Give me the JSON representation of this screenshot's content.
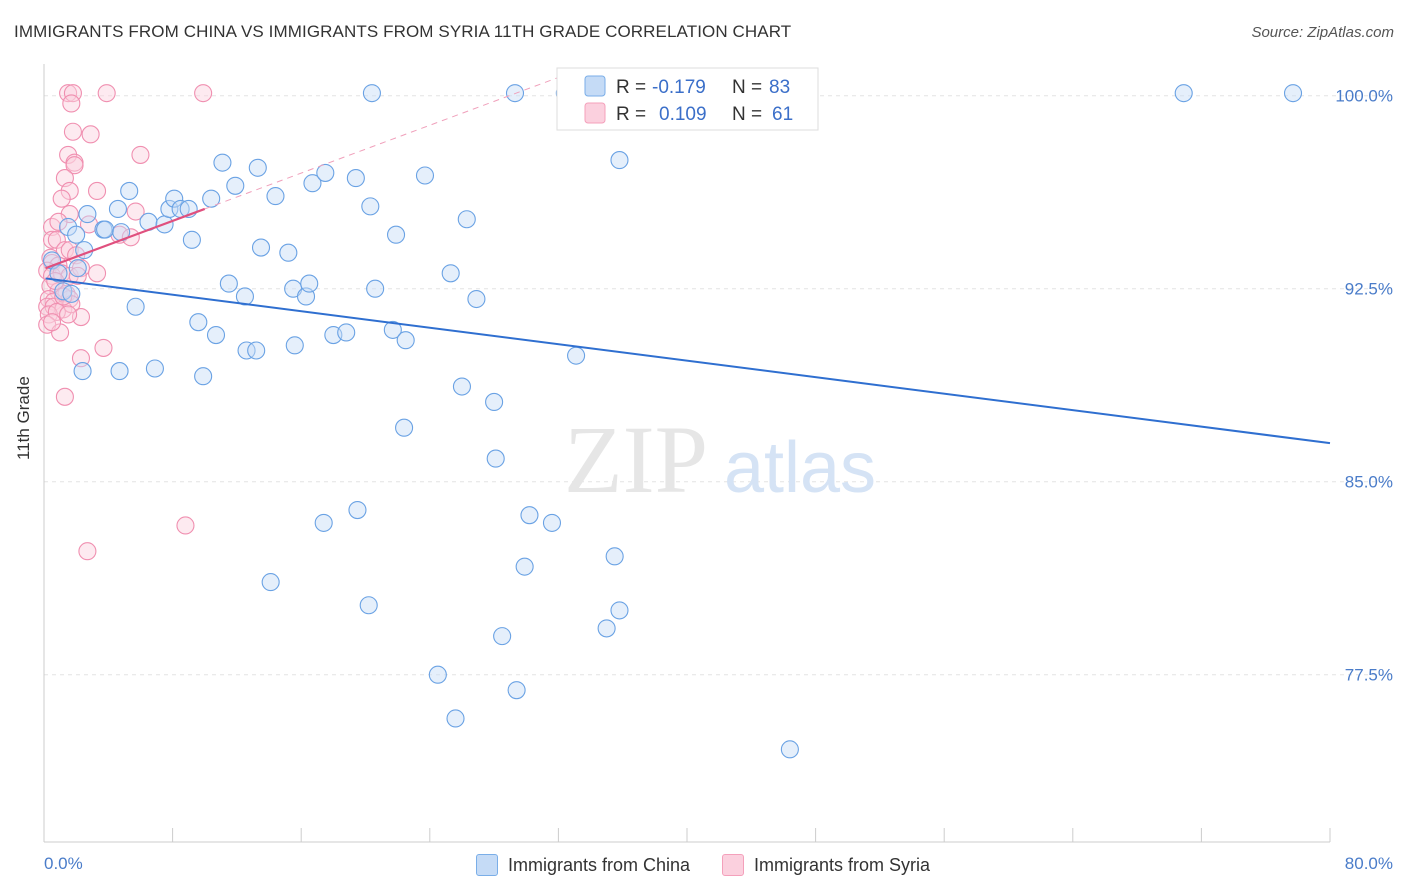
{
  "title": "IMMIGRANTS FROM CHINA VS IMMIGRANTS FROM SYRIA 11TH GRADE CORRELATION CHART",
  "source": "Source: ZipAtlas.com",
  "watermark": {
    "zip": "ZIP",
    "atlas": "atlas"
  },
  "colors": {
    "china": "#7aaee8",
    "china_line": "#2f6fd0",
    "syria": "#f4a0bb",
    "syria_line": "#e0507e",
    "tick_label": "#4a7cc9"
  },
  "legend_box": {
    "rows": [
      {
        "r_label": "R =",
        "r_value": "-0.179",
        "n_label": "N =",
        "n_value": "83"
      },
      {
        "r_label": "R =",
        "r_value": "0.109",
        "n_label": "N =",
        "n_value": "61"
      }
    ]
  },
  "chart_data": {
    "type": "scatter",
    "title": "IMMIGRANTS FROM CHINA VS IMMIGRANTS FROM SYRIA 11TH GRADE CORRELATION CHART",
    "xlabel": "",
    "ylabel": "11th Grade",
    "xlim": [
      0,
      80
    ],
    "ylim": [
      71.0,
      101.0
    ],
    "x_tick_labels": [
      "0.0%",
      "80.0%"
    ],
    "y_ticks": [
      77.5,
      85.0,
      92.5,
      100.0
    ],
    "y_tick_labels": [
      "77.5%",
      "85.0%",
      "92.5%",
      "100.0%"
    ],
    "grid": true,
    "legend_position": "top-center",
    "series": [
      {
        "name": "Immigrants from China",
        "color": "#7aaee8",
        "r": -0.179,
        "n": 83,
        "trend": {
          "x": [
            0.1,
            80
          ],
          "y": [
            92.9,
            86.5
          ]
        },
        "points": [
          [
            0.5,
            93.6
          ],
          [
            0.9,
            93.1
          ],
          [
            1.2,
            92.4
          ],
          [
            1.5,
            94.9
          ],
          [
            2.0,
            94.6
          ],
          [
            2.5,
            94.0
          ],
          [
            2.7,
            95.4
          ],
          [
            3.7,
            94.8
          ],
          [
            3.8,
            94.8
          ],
          [
            4.6,
            95.6
          ],
          [
            4.8,
            94.7
          ],
          [
            5.3,
            96.3
          ],
          [
            6.5,
            95.1
          ],
          [
            7.5,
            95.0
          ],
          [
            7.8,
            95.6
          ],
          [
            8.1,
            96.0
          ],
          [
            8.5,
            95.6
          ],
          [
            9.0,
            95.6
          ],
          [
            10.4,
            96.0
          ],
          [
            11.1,
            97.4
          ],
          [
            11.9,
            96.5
          ],
          [
            13.3,
            97.2
          ],
          [
            14.4,
            96.1
          ],
          [
            16.7,
            96.6
          ],
          [
            17.5,
            97.0
          ],
          [
            19.4,
            96.8
          ],
          [
            20.3,
            95.7
          ],
          [
            21.9,
            94.6
          ],
          [
            23.7,
            96.9
          ],
          [
            26.3,
            95.2
          ],
          [
            9.2,
            94.4
          ],
          [
            13.5,
            94.1
          ],
          [
            15.2,
            93.9
          ],
          [
            11.5,
            92.7
          ],
          [
            12.5,
            92.2
          ],
          [
            15.5,
            92.5
          ],
          [
            16.3,
            92.2
          ],
          [
            16.5,
            92.7
          ],
          [
            20.6,
            92.5
          ],
          [
            25.3,
            93.1
          ],
          [
            26.9,
            92.1
          ],
          [
            2.4,
            89.3
          ],
          [
            5.7,
            91.8
          ],
          [
            9.6,
            91.2
          ],
          [
            10.7,
            90.7
          ],
          [
            12.6,
            90.1
          ],
          [
            13.2,
            90.1
          ],
          [
            15.6,
            90.3
          ],
          [
            18.0,
            90.7
          ],
          [
            18.8,
            90.8
          ],
          [
            21.7,
            90.9
          ],
          [
            22.5,
            90.5
          ],
          [
            33.1,
            89.9
          ],
          [
            4.7,
            89.3
          ],
          [
            6.9,
            89.4
          ],
          [
            9.9,
            89.1
          ],
          [
            26.0,
            88.7
          ],
          [
            28.0,
            88.1
          ],
          [
            22.4,
            87.1
          ],
          [
            28.1,
            85.9
          ],
          [
            17.4,
            83.4
          ],
          [
            19.5,
            83.9
          ],
          [
            30.2,
            83.7
          ],
          [
            31.6,
            83.4
          ],
          [
            35.5,
            82.1
          ],
          [
            29.9,
            81.7
          ],
          [
            14.1,
            81.1
          ],
          [
            20.2,
            80.2
          ],
          [
            28.5,
            79.0
          ],
          [
            35.8,
            80.0
          ],
          [
            35.0,
            79.3
          ],
          [
            24.5,
            77.5
          ],
          [
            29.4,
            76.9
          ],
          [
            25.6,
            75.8
          ],
          [
            46.4,
            74.6
          ],
          [
            20.4,
            100.1
          ],
          [
            29.3,
            100.1
          ],
          [
            32.4,
            100.1
          ],
          [
            70.9,
            100.1
          ],
          [
            77.7,
            100.1
          ],
          [
            35.8,
            97.5
          ],
          [
            2.1,
            93.3
          ],
          [
            1.7,
            92.3
          ]
        ]
      },
      {
        "name": "Immigrants from Syria",
        "color": "#f4a0bb",
        "r": 0.109,
        "n": 61,
        "trend": {
          "x": [
            0.1,
            10
          ],
          "y": [
            93.3,
            95.6
          ]
        },
        "points": [
          [
            1.5,
            100.1
          ],
          [
            1.8,
            100.1
          ],
          [
            3.9,
            100.1
          ],
          [
            9.9,
            100.1
          ],
          [
            1.7,
            99.7
          ],
          [
            1.8,
            98.6
          ],
          [
            2.9,
            98.5
          ],
          [
            1.5,
            97.7
          ],
          [
            1.9,
            97.4
          ],
          [
            1.9,
            97.3
          ],
          [
            6.0,
            97.7
          ],
          [
            1.3,
            96.8
          ],
          [
            1.6,
            96.3
          ],
          [
            3.3,
            96.3
          ],
          [
            1.1,
            96.0
          ],
          [
            5.7,
            95.5
          ],
          [
            1.6,
            95.4
          ],
          [
            0.5,
            94.9
          ],
          [
            2.8,
            95.0
          ],
          [
            0.5,
            94.4
          ],
          [
            0.8,
            94.4
          ],
          [
            1.3,
            94.0
          ],
          [
            1.6,
            94.0
          ],
          [
            0.4,
            93.7
          ],
          [
            0.5,
            93.5
          ],
          [
            0.9,
            93.4
          ],
          [
            2.0,
            93.8
          ],
          [
            0.2,
            93.2
          ],
          [
            0.5,
            93.0
          ],
          [
            1.1,
            93.1
          ],
          [
            1.6,
            93.0
          ],
          [
            2.3,
            93.3
          ],
          [
            3.3,
            93.1
          ],
          [
            0.4,
            92.6
          ],
          [
            0.9,
            92.4
          ],
          [
            1.4,
            92.3
          ],
          [
            0.3,
            92.1
          ],
          [
            0.6,
            92.0
          ],
          [
            1.6,
            92.1
          ],
          [
            0.2,
            91.8
          ],
          [
            0.6,
            91.8
          ],
          [
            1.2,
            91.7
          ],
          [
            1.7,
            91.9
          ],
          [
            0.3,
            91.5
          ],
          [
            0.8,
            91.6
          ],
          [
            2.3,
            91.4
          ],
          [
            0.2,
            91.1
          ],
          [
            1.0,
            90.8
          ],
          [
            0.5,
            91.2
          ],
          [
            1.5,
            91.5
          ],
          [
            1.2,
            92.2
          ],
          [
            0.7,
            92.8
          ],
          [
            3.7,
            90.2
          ],
          [
            2.3,
            89.8
          ],
          [
            1.3,
            88.3
          ],
          [
            8.8,
            83.3
          ],
          [
            2.7,
            82.3
          ],
          [
            4.7,
            94.6
          ],
          [
            5.4,
            94.5
          ],
          [
            0.9,
            95.1
          ],
          [
            2.1,
            93.0
          ]
        ]
      }
    ]
  }
}
